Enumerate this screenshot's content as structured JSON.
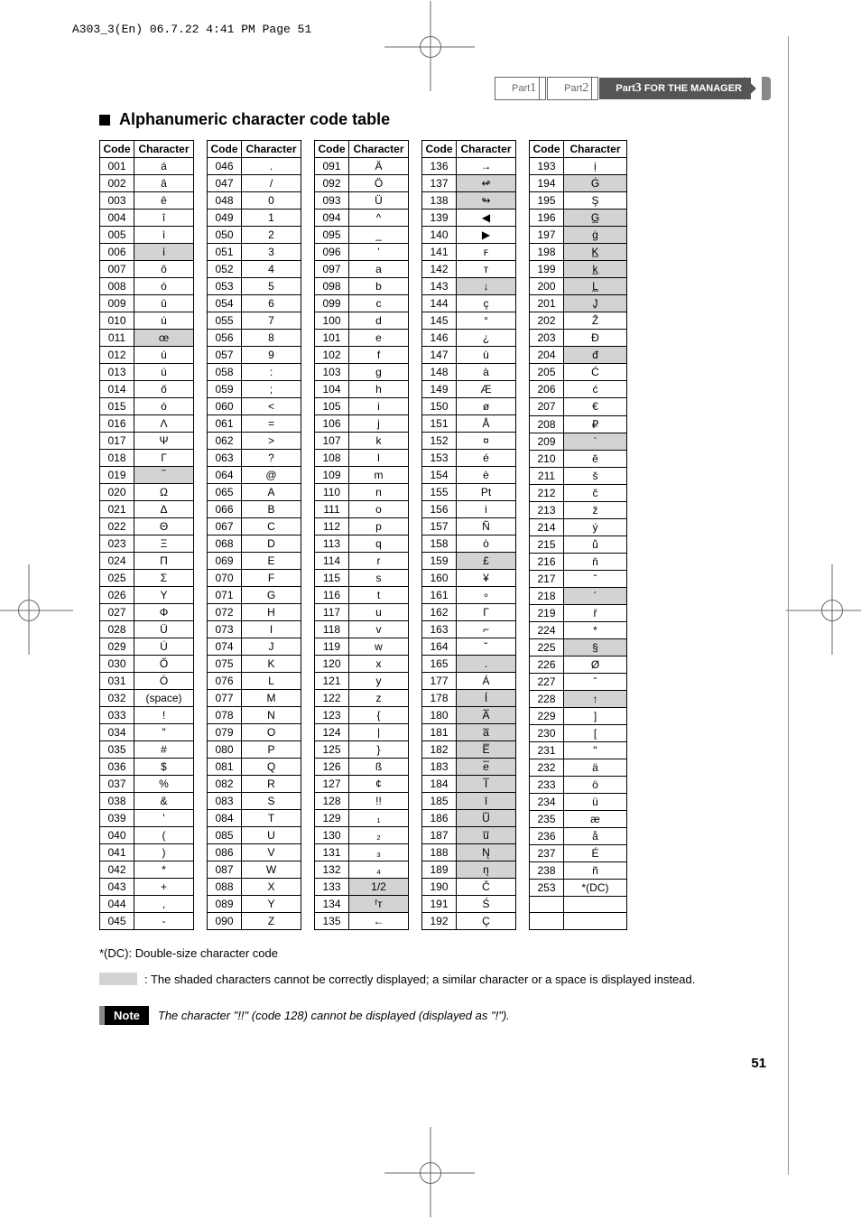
{
  "header_info": "A303_3(En)  06.7.22 4:41 PM  Page 51",
  "breadcrumb": {
    "p1": "Part",
    "n1": "1",
    "p2": "Part",
    "n2": "2",
    "p3": "Part",
    "n3": "3",
    "label": "FOR THE MANAGER"
  },
  "title": "Alphanumeric character code table",
  "th_code": "Code",
  "th_char": "Character",
  "columns": [
    [
      [
        "001",
        "á",
        0
      ],
      [
        "002",
        "â",
        0
      ],
      [
        "003",
        "ê",
        0
      ],
      [
        "004",
        "î",
        0
      ],
      [
        "005",
        "ì",
        0
      ],
      [
        "006",
        "í",
        1
      ],
      [
        "007",
        "ô",
        0
      ],
      [
        "008",
        "ó",
        0
      ],
      [
        "009",
        "û",
        0
      ],
      [
        "010",
        "ú",
        0
      ],
      [
        "011",
        "œ",
        1
      ],
      [
        "012",
        "ú",
        0
      ],
      [
        "013",
        "ú",
        0
      ],
      [
        "014",
        "ő",
        0
      ],
      [
        "015",
        "ó",
        0
      ],
      [
        "016",
        "Λ",
        0
      ],
      [
        "017",
        "Ψ",
        0
      ],
      [
        "018",
        "Γ",
        0
      ],
      [
        "019",
        "‾",
        1
      ],
      [
        "020",
        "Ω",
        0
      ],
      [
        "021",
        "Δ",
        0
      ],
      [
        "022",
        "Θ",
        0
      ],
      [
        "023",
        "Ξ",
        0
      ],
      [
        "024",
        "Π",
        0
      ],
      [
        "025",
        "Σ",
        0
      ],
      [
        "026",
        "Υ",
        0
      ],
      [
        "027",
        "Φ",
        0
      ],
      [
        "028",
        "Ü",
        0
      ],
      [
        "029",
        "Ú",
        0
      ],
      [
        "030",
        "Ő",
        0
      ],
      [
        "031",
        "Ó",
        0
      ],
      [
        "032",
        "(space)",
        0
      ],
      [
        "033",
        "!",
        0
      ],
      [
        "034",
        "\"",
        0
      ],
      [
        "035",
        "#",
        0
      ],
      [
        "036",
        "$",
        0
      ],
      [
        "037",
        "%",
        0
      ],
      [
        "038",
        "&",
        0
      ],
      [
        "039",
        "'",
        0
      ],
      [
        "040",
        "(",
        0
      ],
      [
        "041",
        ")",
        0
      ],
      [
        "042",
        "*",
        0
      ],
      [
        "043",
        "+",
        0
      ],
      [
        "044",
        ",",
        0
      ],
      [
        "045",
        "-",
        0
      ]
    ],
    [
      [
        "046",
        ".",
        0
      ],
      [
        "047",
        "/",
        0
      ],
      [
        "048",
        "0",
        0
      ],
      [
        "049",
        "1",
        0
      ],
      [
        "050",
        "2",
        0
      ],
      [
        "051",
        "3",
        0
      ],
      [
        "052",
        "4",
        0
      ],
      [
        "053",
        "5",
        0
      ],
      [
        "054",
        "6",
        0
      ],
      [
        "055",
        "7",
        0
      ],
      [
        "056",
        "8",
        0
      ],
      [
        "057",
        "9",
        0
      ],
      [
        "058",
        ":",
        0
      ],
      [
        "059",
        ";",
        0
      ],
      [
        "060",
        "<",
        0
      ],
      [
        "061",
        "=",
        0
      ],
      [
        "062",
        ">",
        0
      ],
      [
        "063",
        "?",
        0
      ],
      [
        "064",
        "@",
        0
      ],
      [
        "065",
        "A",
        0
      ],
      [
        "066",
        "B",
        0
      ],
      [
        "067",
        "C",
        0
      ],
      [
        "068",
        "D",
        0
      ],
      [
        "069",
        "E",
        0
      ],
      [
        "070",
        "F",
        0
      ],
      [
        "071",
        "G",
        0
      ],
      [
        "072",
        "H",
        0
      ],
      [
        "073",
        "I",
        0
      ],
      [
        "074",
        "J",
        0
      ],
      [
        "075",
        "K",
        0
      ],
      [
        "076",
        "L",
        0
      ],
      [
        "077",
        "M",
        0
      ],
      [
        "078",
        "N",
        0
      ],
      [
        "079",
        "O",
        0
      ],
      [
        "080",
        "P",
        0
      ],
      [
        "081",
        "Q",
        0
      ],
      [
        "082",
        "R",
        0
      ],
      [
        "083",
        "S",
        0
      ],
      [
        "084",
        "T",
        0
      ],
      [
        "085",
        "U",
        0
      ],
      [
        "086",
        "V",
        0
      ],
      [
        "087",
        "W",
        0
      ],
      [
        "088",
        "X",
        0
      ],
      [
        "089",
        "Y",
        0
      ],
      [
        "090",
        "Z",
        0
      ]
    ],
    [
      [
        "091",
        "Ä",
        0
      ],
      [
        "092",
        "Ö",
        0
      ],
      [
        "093",
        "Ü",
        0
      ],
      [
        "094",
        "^",
        0
      ],
      [
        "095",
        "_",
        0
      ],
      [
        "096",
        "'",
        0
      ],
      [
        "097",
        "a",
        0
      ],
      [
        "098",
        "b",
        0
      ],
      [
        "099",
        "c",
        0
      ],
      [
        "100",
        "d",
        0
      ],
      [
        "101",
        "e",
        0
      ],
      [
        "102",
        "f",
        0
      ],
      [
        "103",
        "g",
        0
      ],
      [
        "104",
        "h",
        0
      ],
      [
        "105",
        "i",
        0
      ],
      [
        "106",
        "j",
        0
      ],
      [
        "107",
        "k",
        0
      ],
      [
        "108",
        "l",
        0
      ],
      [
        "109",
        "m",
        0
      ],
      [
        "110",
        "n",
        0
      ],
      [
        "111",
        "o",
        0
      ],
      [
        "112",
        "p",
        0
      ],
      [
        "113",
        "q",
        0
      ],
      [
        "114",
        "r",
        0
      ],
      [
        "115",
        "s",
        0
      ],
      [
        "116",
        "t",
        0
      ],
      [
        "117",
        "u",
        0
      ],
      [
        "118",
        "v",
        0
      ],
      [
        "119",
        "w",
        0
      ],
      [
        "120",
        "x",
        0
      ],
      [
        "121",
        "y",
        0
      ],
      [
        "122",
        "z",
        0
      ],
      [
        "123",
        "{",
        0
      ],
      [
        "124",
        "|",
        0
      ],
      [
        "125",
        "}",
        0
      ],
      [
        "126",
        "ß",
        0
      ],
      [
        "127",
        "¢",
        0
      ],
      [
        "128",
        "!!",
        0
      ],
      [
        "129",
        "₁",
        0
      ],
      [
        "130",
        "₂",
        0
      ],
      [
        "131",
        "₃",
        0
      ],
      [
        "132",
        "₄",
        0
      ],
      [
        "133",
        "1/2",
        1
      ],
      [
        "134",
        "ᶠᴛ",
        1
      ],
      [
        "135",
        "←",
        0
      ]
    ],
    [
      [
        "136",
        "→",
        0
      ],
      [
        "137",
        "↫",
        1
      ],
      [
        "138",
        "↬",
        1
      ],
      [
        "139",
        "◀",
        0
      ],
      [
        "140",
        "▶",
        0
      ],
      [
        "141",
        "ꜰ",
        0
      ],
      [
        "142",
        "ᴛ",
        0
      ],
      [
        "143",
        "↓",
        1
      ],
      [
        "144",
        "ç",
        0
      ],
      [
        "145",
        "°",
        0
      ],
      [
        "146",
        "¿",
        0
      ],
      [
        "147",
        "ù",
        0
      ],
      [
        "148",
        "à",
        0
      ],
      [
        "149",
        "Æ",
        0
      ],
      [
        "150",
        "ø",
        0
      ],
      [
        "151",
        "Å",
        0
      ],
      [
        "152",
        "¤",
        0
      ],
      [
        "153",
        "é",
        0
      ],
      [
        "154",
        "è",
        0
      ],
      [
        "155",
        "Pt",
        0
      ],
      [
        "156",
        "i",
        0
      ],
      [
        "157",
        "Ñ",
        0
      ],
      [
        "158",
        "ò",
        0
      ],
      [
        "159",
        "£",
        1
      ],
      [
        "160",
        "¥",
        0
      ],
      [
        "161",
        "∘",
        0
      ],
      [
        "162",
        "Γ",
        0
      ],
      [
        "163",
        "⌐",
        0
      ],
      [
        "164",
        "˘",
        0
      ],
      [
        "165",
        ".",
        1
      ],
      [
        "177",
        "Á",
        0
      ],
      [
        "178",
        "Í",
        1
      ],
      [
        "180",
        "A̅",
        1
      ],
      [
        "181",
        "a̅",
        1
      ],
      [
        "182",
        "E̅",
        1
      ],
      [
        "183",
        "e̅",
        1
      ],
      [
        "184",
        "I̅",
        1
      ],
      [
        "185",
        "ī",
        1
      ],
      [
        "186",
        "U̅",
        1
      ],
      [
        "187",
        "u̅",
        1
      ],
      [
        "188",
        "N̨",
        1
      ],
      [
        "189",
        "n̨",
        1
      ],
      [
        "190",
        "Č",
        0
      ],
      [
        "191",
        "Ś",
        0
      ],
      [
        "192",
        "Ç",
        0
      ]
    ],
    [
      [
        "193",
        "ị",
        0
      ],
      [
        "194",
        "Ġ",
        1
      ],
      [
        "195",
        "Ş",
        0
      ],
      [
        "196",
        "G̲",
        1
      ],
      [
        "197",
        "ġ",
        1
      ],
      [
        "198",
        "K̲",
        1
      ],
      [
        "199",
        "k̲",
        1
      ],
      [
        "200",
        "L̲",
        1
      ],
      [
        "201",
        "J̱",
        1
      ],
      [
        "202",
        "Ž",
        0
      ],
      [
        "203",
        "Đ",
        0
      ],
      [
        "204",
        "đ",
        1
      ],
      [
        "205",
        "Ć",
        0
      ],
      [
        "206",
        "ć",
        0
      ],
      [
        "207",
        "€",
        0
      ],
      [
        "208",
        "₽",
        0
      ],
      [
        "209",
        "`",
        1
      ],
      [
        "210",
        "ĕ",
        0
      ],
      [
        "211",
        "š",
        0
      ],
      [
        "212",
        "č",
        0
      ],
      [
        "213",
        "ž",
        0
      ],
      [
        "214",
        "ý",
        0
      ],
      [
        "215",
        "ů",
        0
      ],
      [
        "216",
        "ň",
        0
      ],
      [
        "217",
        "ˇ",
        0
      ],
      [
        "218",
        "´",
        1
      ],
      [
        "219",
        "ř",
        0
      ],
      [
        "224",
        "*",
        0
      ],
      [
        "225",
        "§",
        1
      ],
      [
        "226",
        "Ø",
        0
      ],
      [
        "227",
        "ˆ",
        0
      ],
      [
        "228",
        "↑",
        1
      ],
      [
        "229",
        "]",
        0
      ],
      [
        "230",
        "[",
        0
      ],
      [
        "231",
        "\"",
        0
      ],
      [
        "232",
        "ä",
        0
      ],
      [
        "233",
        "ö",
        0
      ],
      [
        "234",
        "ü",
        0
      ],
      [
        "235",
        "æ",
        0
      ],
      [
        "236",
        "å",
        0
      ],
      [
        "237",
        "É",
        0
      ],
      [
        "238",
        "ñ",
        0
      ],
      [
        "253",
        "*(DC)",
        0
      ],
      [
        "",
        "",
        0
      ],
      [
        "",
        "",
        0
      ]
    ]
  ],
  "footnote1": "*(DC): Double-size character code",
  "footnote2": ": The shaded characters cannot be correctly displayed; a similar character or a space is displayed instead.",
  "note_badge": "Note",
  "note_text": "The character \"!!\" (code 128) cannot be displayed (displayed as \"!\").",
  "page_number": "51",
  "colors": {
    "shaded": "#d3d3d3",
    "breadcrumb_fill": "#555555",
    "text": "#000000",
    "background": "#ffffff"
  }
}
